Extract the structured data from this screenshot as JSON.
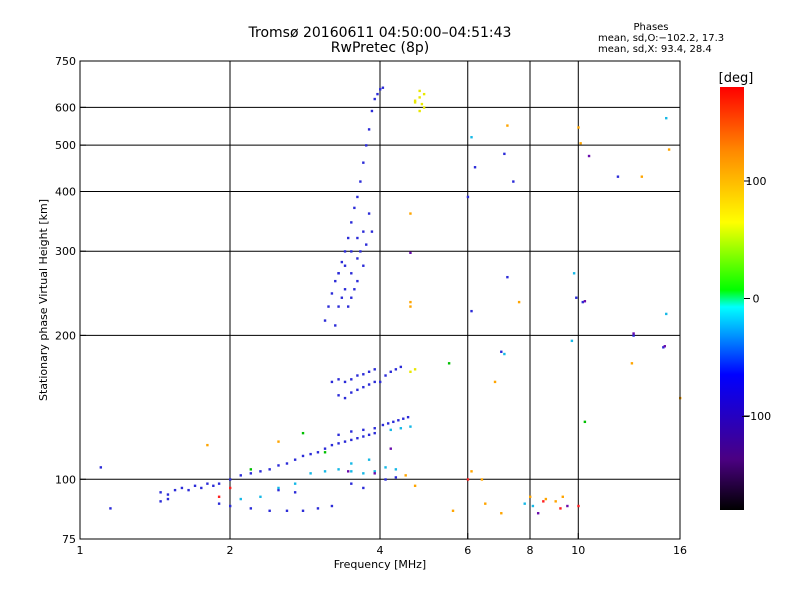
{
  "header": {
    "title_line1": "Tromsø 20160611 04:50:00–04:51:43",
    "title_line2": "RwPretec (8p)",
    "stats_title": "Phases",
    "stats_o": "mean, sd,O:−102.2, 17.3",
    "stats_x": "mean, sd,X:  93.4, 28.4"
  },
  "chart_data": {
    "type": "scatter",
    "title": "Tromsø 20160611 04:50:00–04:51:43",
    "subtitle": "RwPretec (8p)",
    "xlabel": "Frequency [MHz]",
    "ylabel": "Stationary phase Virtual Height [km]",
    "x_scale": "log",
    "y_scale": "log",
    "xlim": [
      1,
      16
    ],
    "ylim": [
      75,
      750
    ],
    "x_ticks": [
      1,
      2,
      4,
      6,
      8,
      10,
      16
    ],
    "y_ticks": [
      75,
      100,
      200,
      300,
      400,
      500,
      600,
      750
    ],
    "x_gridlines": [
      2,
      4,
      6,
      8,
      10
    ],
    "y_gridlines": [
      100,
      200,
      300,
      400,
      500,
      600
    ],
    "grid": true,
    "colorbar": {
      "label": "[deg]",
      "range": [
        -180,
        180
      ],
      "ticks": [
        100,
        0,
        -100
      ],
      "colors": [
        "#000000",
        "#4b0082",
        "#0000ff",
        "#00ffff",
        "#00ff00",
        "#ffff00",
        "#ff8800",
        "#ff0000"
      ]
    },
    "series": [
      {
        "color": "#2b2bd8",
        "points": [
          [
            1.45,
            94
          ],
          [
            1.5,
            93
          ],
          [
            1.55,
            95
          ],
          [
            1.6,
            96
          ],
          [
            1.65,
            95
          ],
          [
            1.7,
            97
          ],
          [
            1.75,
            96
          ],
          [
            1.8,
            98
          ],
          [
            1.85,
            97
          ],
          [
            1.9,
            98
          ],
          [
            2.0,
            100
          ],
          [
            2.1,
            102
          ],
          [
            2.2,
            103
          ],
          [
            2.3,
            104
          ],
          [
            2.4,
            105
          ],
          [
            2.5,
            107
          ],
          [
            2.6,
            108
          ],
          [
            2.7,
            110
          ],
          [
            2.8,
            112
          ],
          [
            2.9,
            113
          ],
          [
            3.0,
            114
          ],
          [
            3.1,
            116
          ],
          [
            3.2,
            118
          ],
          [
            3.3,
            119
          ],
          [
            3.4,
            120
          ],
          [
            3.5,
            121
          ],
          [
            3.6,
            122
          ],
          [
            3.7,
            123
          ],
          [
            3.8,
            124
          ],
          [
            3.9,
            125
          ],
          [
            3.1,
            215
          ],
          [
            3.15,
            230
          ],
          [
            3.2,
            245
          ],
          [
            3.25,
            260
          ],
          [
            3.3,
            270
          ],
          [
            3.35,
            285
          ],
          [
            3.4,
            300
          ],
          [
            3.45,
            320
          ],
          [
            3.5,
            345
          ],
          [
            3.55,
            370
          ],
          [
            3.6,
            390
          ],
          [
            3.65,
            420
          ],
          [
            3.7,
            460
          ],
          [
            3.75,
            500
          ],
          [
            3.8,
            540
          ],
          [
            3.85,
            590
          ],
          [
            3.9,
            625
          ],
          [
            3.95,
            640
          ],
          [
            4.0,
            655
          ],
          [
            4.05,
            660
          ],
          [
            3.3,
            230
          ],
          [
            3.4,
            250
          ],
          [
            3.5,
            270
          ],
          [
            3.6,
            290
          ],
          [
            3.7,
            330
          ],
          [
            3.8,
            360
          ],
          [
            3.5,
            240
          ],
          [
            3.6,
            260
          ],
          [
            3.7,
            280
          ],
          [
            3.3,
            270
          ],
          [
            3.4,
            280
          ],
          [
            3.5,
            300
          ],
          [
            3.6,
            320
          ],
          [
            3.55,
            250
          ],
          [
            3.45,
            230
          ],
          [
            3.25,
            210
          ],
          [
            3.35,
            240
          ],
          [
            3.65,
            300
          ],
          [
            3.75,
            310
          ],
          [
            3.85,
            330
          ],
          [
            3.2,
            160
          ],
          [
            3.3,
            162
          ],
          [
            3.4,
            160
          ],
          [
            3.5,
            162
          ],
          [
            3.6,
            165
          ],
          [
            3.7,
            166
          ],
          [
            3.8,
            168
          ],
          [
            3.9,
            170
          ],
          [
            3.3,
            150
          ],
          [
            3.4,
            148
          ],
          [
            3.5,
            152
          ],
          [
            3.6,
            154
          ],
          [
            3.7,
            156
          ],
          [
            3.8,
            158
          ],
          [
            3.9,
            160
          ],
          [
            4.0,
            160
          ],
          [
            4.1,
            165
          ],
          [
            4.2,
            168
          ],
          [
            4.3,
            170
          ],
          [
            4.4,
            172
          ],
          [
            4.05,
            130
          ],
          [
            4.15,
            131
          ],
          [
            4.25,
            132
          ],
          [
            4.35,
            133
          ],
          [
            4.45,
            134
          ],
          [
            4.55,
            135
          ],
          [
            3.3,
            124
          ],
          [
            3.5,
            126
          ],
          [
            3.7,
            127
          ],
          [
            3.9,
            128
          ],
          [
            1.9,
            89
          ],
          [
            2.0,
            88
          ],
          [
            2.2,
            87
          ],
          [
            2.4,
            86
          ],
          [
            2.6,
            86
          ],
          [
            2.8,
            86
          ],
          [
            3.0,
            87
          ],
          [
            3.2,
            88
          ],
          [
            1.45,
            90
          ],
          [
            1.5,
            91
          ],
          [
            1.1,
            106
          ],
          [
            1.15,
            87
          ],
          [
            2.5,
            95
          ],
          [
            2.7,
            94
          ],
          [
            3.5,
            98
          ],
          [
            3.7,
            96
          ],
          [
            4.1,
            100
          ],
          [
            4.3,
            101
          ],
          [
            6.2,
            450
          ],
          [
            6.0,
            390
          ],
          [
            6.1,
            225
          ],
          [
            7.1,
            480
          ],
          [
            7.2,
            265
          ],
          [
            7.4,
            420
          ],
          [
            9.9,
            240
          ],
          [
            10.2,
            235
          ],
          [
            12.9,
            200
          ],
          [
            14.8,
            189
          ],
          [
            7.0,
            185
          ],
          [
            12.0,
            430
          ]
        ]
      },
      {
        "color": "#15b8e6",
        "points": [
          [
            2.9,
            103
          ],
          [
            3.1,
            104
          ],
          [
            3.3,
            105
          ],
          [
            3.5,
            104
          ],
          [
            3.7,
            103
          ],
          [
            3.9,
            104
          ],
          [
            4.1,
            106
          ],
          [
            4.3,
            105
          ],
          [
            2.5,
            96
          ],
          [
            2.7,
            98
          ],
          [
            2.3,
            92
          ],
          [
            2.1,
            91
          ],
          [
            4.2,
            127
          ],
          [
            4.4,
            128
          ],
          [
            4.6,
            129
          ],
          [
            6.1,
            520
          ],
          [
            9.8,
            270
          ],
          [
            15.0,
            570
          ],
          [
            15.0,
            222
          ],
          [
            7.8,
            89
          ],
          [
            8.1,
            88
          ],
          [
            9.7,
            195
          ],
          [
            7.1,
            183
          ],
          [
            3.5,
            108
          ],
          [
            3.8,
            110
          ]
        ]
      },
      {
        "color": "#e8e800",
        "points": [
          [
            4.8,
            630
          ],
          [
            4.85,
            610
          ],
          [
            4.9,
            600
          ],
          [
            4.8,
            590
          ],
          [
            4.9,
            640
          ],
          [
            4.7,
            615
          ],
          [
            4.6,
            168
          ],
          [
            4.7,
            170
          ],
          [
            4.7,
            620
          ],
          [
            4.8,
            650
          ]
        ]
      },
      {
        "color": "#ffa500",
        "points": [
          [
            4.6,
            360
          ],
          [
            4.6,
            230
          ],
          [
            4.6,
            235
          ],
          [
            7.2,
            550
          ],
          [
            7.6,
            235
          ],
          [
            10.0,
            545
          ],
          [
            10.1,
            505
          ],
          [
            12.8,
            175
          ],
          [
            13.4,
            430
          ],
          [
            15.2,
            490
          ],
          [
            16.0,
            148
          ],
          [
            6.8,
            160
          ],
          [
            1.8,
            118
          ],
          [
            2.5,
            120
          ],
          [
            6.1,
            104
          ],
          [
            6.4,
            100
          ],
          [
            8.0,
            92
          ],
          [
            8.6,
            91
          ],
          [
            9.0,
            90
          ],
          [
            9.3,
            92
          ],
          [
            5.6,
            86
          ],
          [
            6.5,
            89
          ],
          [
            7.0,
            85
          ],
          [
            4.5,
            102
          ],
          [
            4.7,
            97
          ]
        ]
      },
      {
        "color": "#00c000",
        "points": [
          [
            2.8,
            125
          ],
          [
            2.2,
            105
          ],
          [
            10.3,
            132
          ],
          [
            5.5,
            175
          ],
          [
            3.1,
            114
          ]
        ]
      },
      {
        "color": "#ff2020",
        "points": [
          [
            2.0,
            96
          ],
          [
            1.9,
            92
          ],
          [
            6.0,
            100
          ],
          [
            10.0,
            88
          ],
          [
            9.2,
            87
          ],
          [
            8.5,
            90
          ]
        ]
      },
      {
        "color": "#6a0dad",
        "points": [
          [
            4.6,
            298
          ],
          [
            10.3,
            236
          ],
          [
            12.9,
            202
          ],
          [
            14.9,
            190
          ],
          [
            10.5,
            475
          ],
          [
            3.45,
            104
          ],
          [
            3.9,
            103
          ],
          [
            4.2,
            116
          ],
          [
            8.3,
            85
          ],
          [
            9.5,
            88
          ]
        ]
      }
    ]
  }
}
